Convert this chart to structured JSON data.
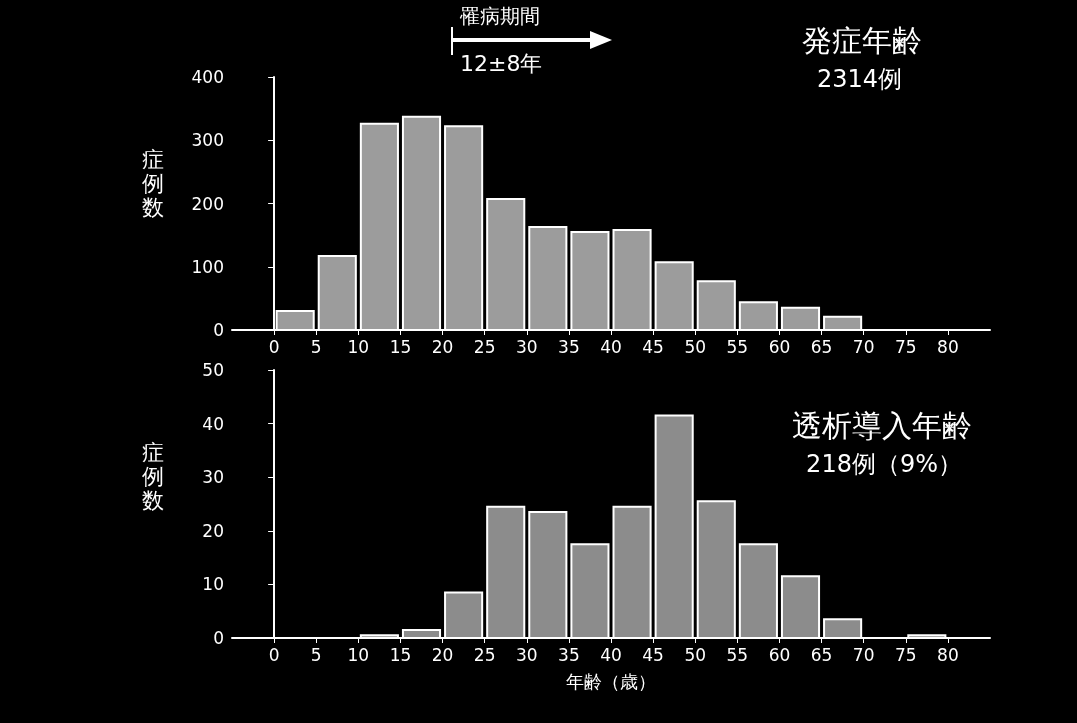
{
  "chart_data": [
    {
      "type": "histogram",
      "title": "発症年齢",
      "subtitle": "2314例",
      "ylabel": "症例数",
      "annotations": [
        "罹病期間",
        "12±8年"
      ],
      "bins": [
        0,
        5,
        10,
        15,
        20,
        25,
        30,
        35,
        40,
        45,
        50,
        55,
        60,
        65,
        70,
        75,
        80
      ],
      "values": [
        30,
        117,
        326,
        337,
        322,
        207,
        163,
        155,
        158,
        107,
        77,
        44,
        35,
        21,
        0,
        0
      ],
      "color": "#9c9c9c",
      "xlim": [
        -5,
        85
      ],
      "xticks": [
        0,
        5,
        10,
        15,
        20,
        25,
        30,
        35,
        40,
        45,
        50,
        55,
        60,
        65,
        70,
        75,
        80
      ],
      "ylim": [
        0,
        400
      ],
      "yticks": [
        0,
        100,
        200,
        300,
        400
      ]
    },
    {
      "type": "histogram",
      "title": "透析導入年齢",
      "subtitle": "218例（9%）",
      "ylabel": "症例数",
      "xlabel": "年齢（歳）",
      "bins": [
        0,
        5,
        10,
        15,
        20,
        25,
        30,
        35,
        40,
        45,
        50,
        55,
        60,
        65,
        70,
        75,
        80
      ],
      "values": [
        0,
        0,
        0.5,
        1.5,
        8.5,
        24.5,
        23.5,
        17.5,
        24.5,
        41.5,
        25.5,
        17.5,
        11.5,
        3.5,
        0,
        0.5
      ],
      "color": "#8c8c8c",
      "xlim": [
        -5,
        85
      ],
      "xticks": [
        0,
        5,
        10,
        15,
        20,
        25,
        30,
        35,
        40,
        45,
        50,
        55,
        60,
        65,
        70,
        75,
        80
      ],
      "ylim": [
        0,
        50
      ],
      "yticks": [
        0,
        10,
        20,
        30,
        40,
        50
      ]
    }
  ]
}
